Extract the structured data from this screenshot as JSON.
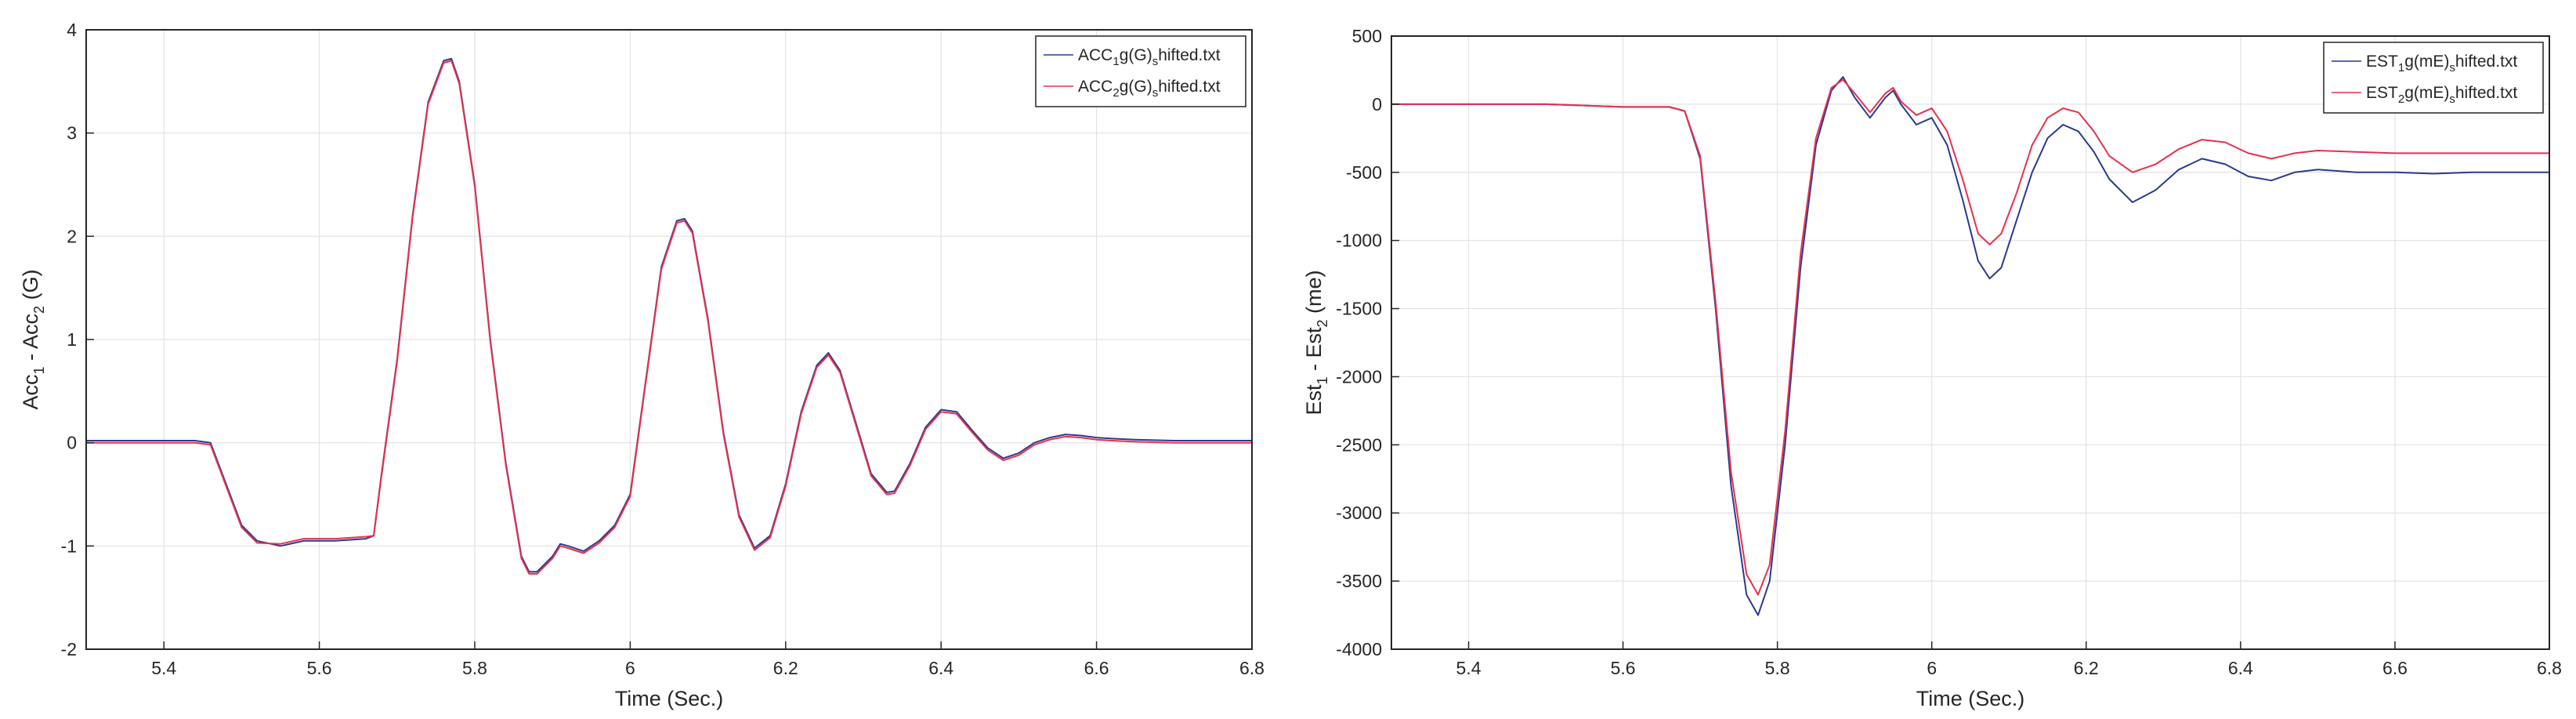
{
  "colors": {
    "series1": "#2b3a8f",
    "series2": "#e8304d",
    "grid": "#e3e3e3",
    "axis": "#262626"
  },
  "chart_data": [
    {
      "type": "line",
      "xlabel": "Time (Sec.)",
      "ylabel": {
        "base1": "Acc",
        "sub1": "1",
        "mid": " - Acc",
        "sub2": "2",
        "tail": " (G)"
      },
      "xlim": [
        5.3,
        6.8
      ],
      "ylim": [
        -2,
        4
      ],
      "xticks": [
        5.4,
        5.6,
        5.8,
        6,
        6.2,
        6.4,
        6.6,
        6.8
      ],
      "xtick_labels": [
        "5.4",
        "5.6",
        "5.8",
        "6",
        "6.2",
        "6.4",
        "6.6",
        "6.8"
      ],
      "yticks": [
        -2,
        -1,
        0,
        1,
        2,
        3,
        4
      ],
      "ytick_labels": [
        "-2",
        "-1",
        "0",
        "1",
        "2",
        "3",
        "4"
      ],
      "grid": true,
      "legend_location": "top-right",
      "series": [
        {
          "name": "ACC1g(G)shifted.txt",
          "legend": {
            "base": "ACC",
            "sub1": "1",
            "mid": "g(G)",
            "sub2": "s",
            "tail": "hifted.txt"
          },
          "color_key": "series1",
          "x": [
            5.3,
            5.44,
            5.46,
            5.48,
            5.5,
            5.52,
            5.55,
            5.58,
            5.62,
            5.66,
            5.67,
            5.68,
            5.7,
            5.72,
            5.74,
            5.76,
            5.77,
            5.78,
            5.8,
            5.82,
            5.84,
            5.86,
            5.87,
            5.88,
            5.9,
            5.91,
            5.92,
            5.94,
            5.96,
            5.98,
            6.0,
            6.02,
            6.04,
            6.06,
            6.07,
            6.08,
            6.1,
            6.12,
            6.14,
            6.16,
            6.18,
            6.2,
            6.22,
            6.24,
            6.255,
            6.27,
            6.29,
            6.31,
            6.33,
            6.34,
            6.36,
            6.38,
            6.4,
            6.42,
            6.44,
            6.46,
            6.48,
            6.5,
            6.52,
            6.54,
            6.56,
            6.58,
            6.6,
            6.62,
            6.65,
            6.7,
            6.75,
            6.8
          ],
          "y": [
            0.02,
            0.02,
            0.0,
            -0.4,
            -0.8,
            -0.95,
            -1.0,
            -0.95,
            -0.95,
            -0.93,
            -0.9,
            -0.3,
            0.8,
            2.2,
            3.3,
            3.7,
            3.72,
            3.5,
            2.5,
            1.0,
            -0.2,
            -1.1,
            -1.25,
            -1.25,
            -1.1,
            -0.98,
            -1.0,
            -1.05,
            -0.95,
            -0.8,
            -0.5,
            0.6,
            1.7,
            2.15,
            2.17,
            2.05,
            1.2,
            0.1,
            -0.7,
            -1.02,
            -0.9,
            -0.4,
            0.3,
            0.75,
            0.87,
            0.7,
            0.2,
            -0.3,
            -0.48,
            -0.47,
            -0.2,
            0.15,
            0.32,
            0.3,
            0.12,
            -0.05,
            -0.15,
            -0.1,
            0.0,
            0.05,
            0.08,
            0.07,
            0.05,
            0.04,
            0.03,
            0.02,
            0.02,
            0.02
          ]
        },
        {
          "name": "ACC2g(G)shifted.txt",
          "legend": {
            "base": "ACC",
            "sub1": "2",
            "mid": "g(G)",
            "sub2": "s",
            "tail": "hifted.txt"
          },
          "color_key": "series2",
          "x": [
            5.3,
            5.44,
            5.46,
            5.48,
            5.5,
            5.52,
            5.55,
            5.58,
            5.62,
            5.66,
            5.67,
            5.68,
            5.7,
            5.72,
            5.74,
            5.76,
            5.77,
            5.78,
            5.8,
            5.82,
            5.84,
            5.86,
            5.87,
            5.88,
            5.9,
            5.91,
            5.92,
            5.94,
            5.96,
            5.98,
            6.0,
            6.02,
            6.04,
            6.06,
            6.07,
            6.08,
            6.1,
            6.12,
            6.14,
            6.16,
            6.18,
            6.2,
            6.22,
            6.24,
            6.255,
            6.27,
            6.29,
            6.31,
            6.33,
            6.34,
            6.36,
            6.38,
            6.4,
            6.42,
            6.44,
            6.46,
            6.48,
            6.5,
            6.52,
            6.54,
            6.56,
            6.58,
            6.6,
            6.62,
            6.65,
            6.7,
            6.75,
            6.8
          ],
          "y": [
            0.0,
            0.0,
            -0.02,
            -0.42,
            -0.82,
            -0.97,
            -0.98,
            -0.93,
            -0.93,
            -0.91,
            -0.9,
            -0.32,
            0.78,
            2.18,
            3.28,
            3.68,
            3.7,
            3.48,
            2.48,
            0.98,
            -0.22,
            -1.12,
            -1.27,
            -1.27,
            -1.12,
            -1.0,
            -1.02,
            -1.07,
            -0.97,
            -0.82,
            -0.52,
            0.58,
            1.68,
            2.13,
            2.15,
            2.03,
            1.18,
            0.08,
            -0.72,
            -1.04,
            -0.92,
            -0.42,
            0.28,
            0.73,
            0.85,
            0.68,
            0.18,
            -0.32,
            -0.5,
            -0.49,
            -0.22,
            0.13,
            0.3,
            0.28,
            0.1,
            -0.07,
            -0.17,
            -0.12,
            -0.02,
            0.03,
            0.06,
            0.05,
            0.03,
            0.02,
            0.01,
            0.0,
            0.0,
            0.0
          ]
        }
      ]
    },
    {
      "type": "line",
      "xlabel": "Time (Sec.)",
      "ylabel": {
        "base1": "Est",
        "sub1": "1",
        "mid": " - Est",
        "sub2": "2",
        "tail": " (me)"
      },
      "xlim": [
        5.3,
        6.8
      ],
      "ylim": [
        -4000,
        500
      ],
      "xticks": [
        5.4,
        5.6,
        5.8,
        6,
        6.2,
        6.4,
        6.6,
        6.8
      ],
      "xtick_labels": [
        "5.4",
        "5.6",
        "5.8",
        "6",
        "6.2",
        "6.4",
        "6.6",
        "6.8"
      ],
      "yticks": [
        -4000,
        -3500,
        -3000,
        -2500,
        -2000,
        -1500,
        -1000,
        -500,
        0,
        500
      ],
      "ytick_labels": [
        "-4000",
        "-3500",
        "-3000",
        "-2500",
        "-2000",
        "-1500",
        "-1000",
        "-500",
        "0",
        "500"
      ],
      "grid": true,
      "legend_location": "top-right",
      "series": [
        {
          "name": "EST1g(mE)shifted.txt",
          "legend": {
            "base": "EST",
            "sub1": "1",
            "mid": "g(mE)",
            "sub2": "s",
            "tail": "hifted.txt"
          },
          "color_key": "series1",
          "x": [
            5.3,
            5.5,
            5.6,
            5.66,
            5.68,
            5.7,
            5.72,
            5.74,
            5.76,
            5.775,
            5.79,
            5.81,
            5.83,
            5.85,
            5.87,
            5.885,
            5.9,
            5.92,
            5.94,
            5.95,
            5.96,
            5.98,
            6.0,
            6.02,
            6.04,
            6.06,
            6.075,
            6.09,
            6.11,
            6.13,
            6.15,
            6.17,
            6.19,
            6.21,
            6.23,
            6.26,
            6.29,
            6.32,
            6.35,
            6.38,
            6.41,
            6.44,
            6.47,
            6.5,
            6.55,
            6.6,
            6.65,
            6.7,
            6.75,
            6.8
          ],
          "y": [
            0,
            0,
            -20,
            -20,
            -50,
            -400,
            -1500,
            -2800,
            -3600,
            -3750,
            -3500,
            -2500,
            -1200,
            -300,
            100,
            200,
            50,
            -100,
            50,
            100,
            0,
            -150,
            -100,
            -300,
            -700,
            -1150,
            -1280,
            -1200,
            -850,
            -500,
            -250,
            -150,
            -200,
            -350,
            -550,
            -720,
            -630,
            -480,
            -400,
            -440,
            -530,
            -560,
            -500,
            -480,
            -500,
            -500,
            -510,
            -500,
            -500,
            -500
          ]
        },
        {
          "name": "EST2g(mE)shifted.txt",
          "legend": {
            "base": "EST",
            "sub1": "2",
            "mid": "g(mE)",
            "sub2": "s",
            "tail": "hifted.txt"
          },
          "color_key": "series2",
          "x": [
            5.3,
            5.5,
            5.6,
            5.66,
            5.68,
            5.7,
            5.72,
            5.74,
            5.76,
            5.775,
            5.79,
            5.81,
            5.83,
            5.85,
            5.87,
            5.885,
            5.9,
            5.92,
            5.94,
            5.95,
            5.96,
            5.98,
            6.0,
            6.02,
            6.04,
            6.06,
            6.075,
            6.09,
            6.11,
            6.13,
            6.15,
            6.17,
            6.19,
            6.21,
            6.23,
            6.26,
            6.29,
            6.32,
            6.35,
            6.38,
            6.41,
            6.44,
            6.47,
            6.5,
            6.55,
            6.6,
            6.65,
            6.7,
            6.75,
            6.8
          ],
          "y": [
            0,
            0,
            -20,
            -20,
            -50,
            -380,
            -1450,
            -2700,
            -3450,
            -3600,
            -3380,
            -2400,
            -1100,
            -250,
            120,
            180,
            80,
            -60,
            80,
            120,
            20,
            -80,
            -30,
            -200,
            -550,
            -950,
            -1030,
            -950,
            -650,
            -300,
            -100,
            -30,
            -60,
            -200,
            -380,
            -500,
            -440,
            -330,
            -260,
            -280,
            -360,
            -400,
            -360,
            -340,
            -350,
            -360,
            -360,
            -360,
            -360,
            -360
          ]
        }
      ]
    }
  ]
}
